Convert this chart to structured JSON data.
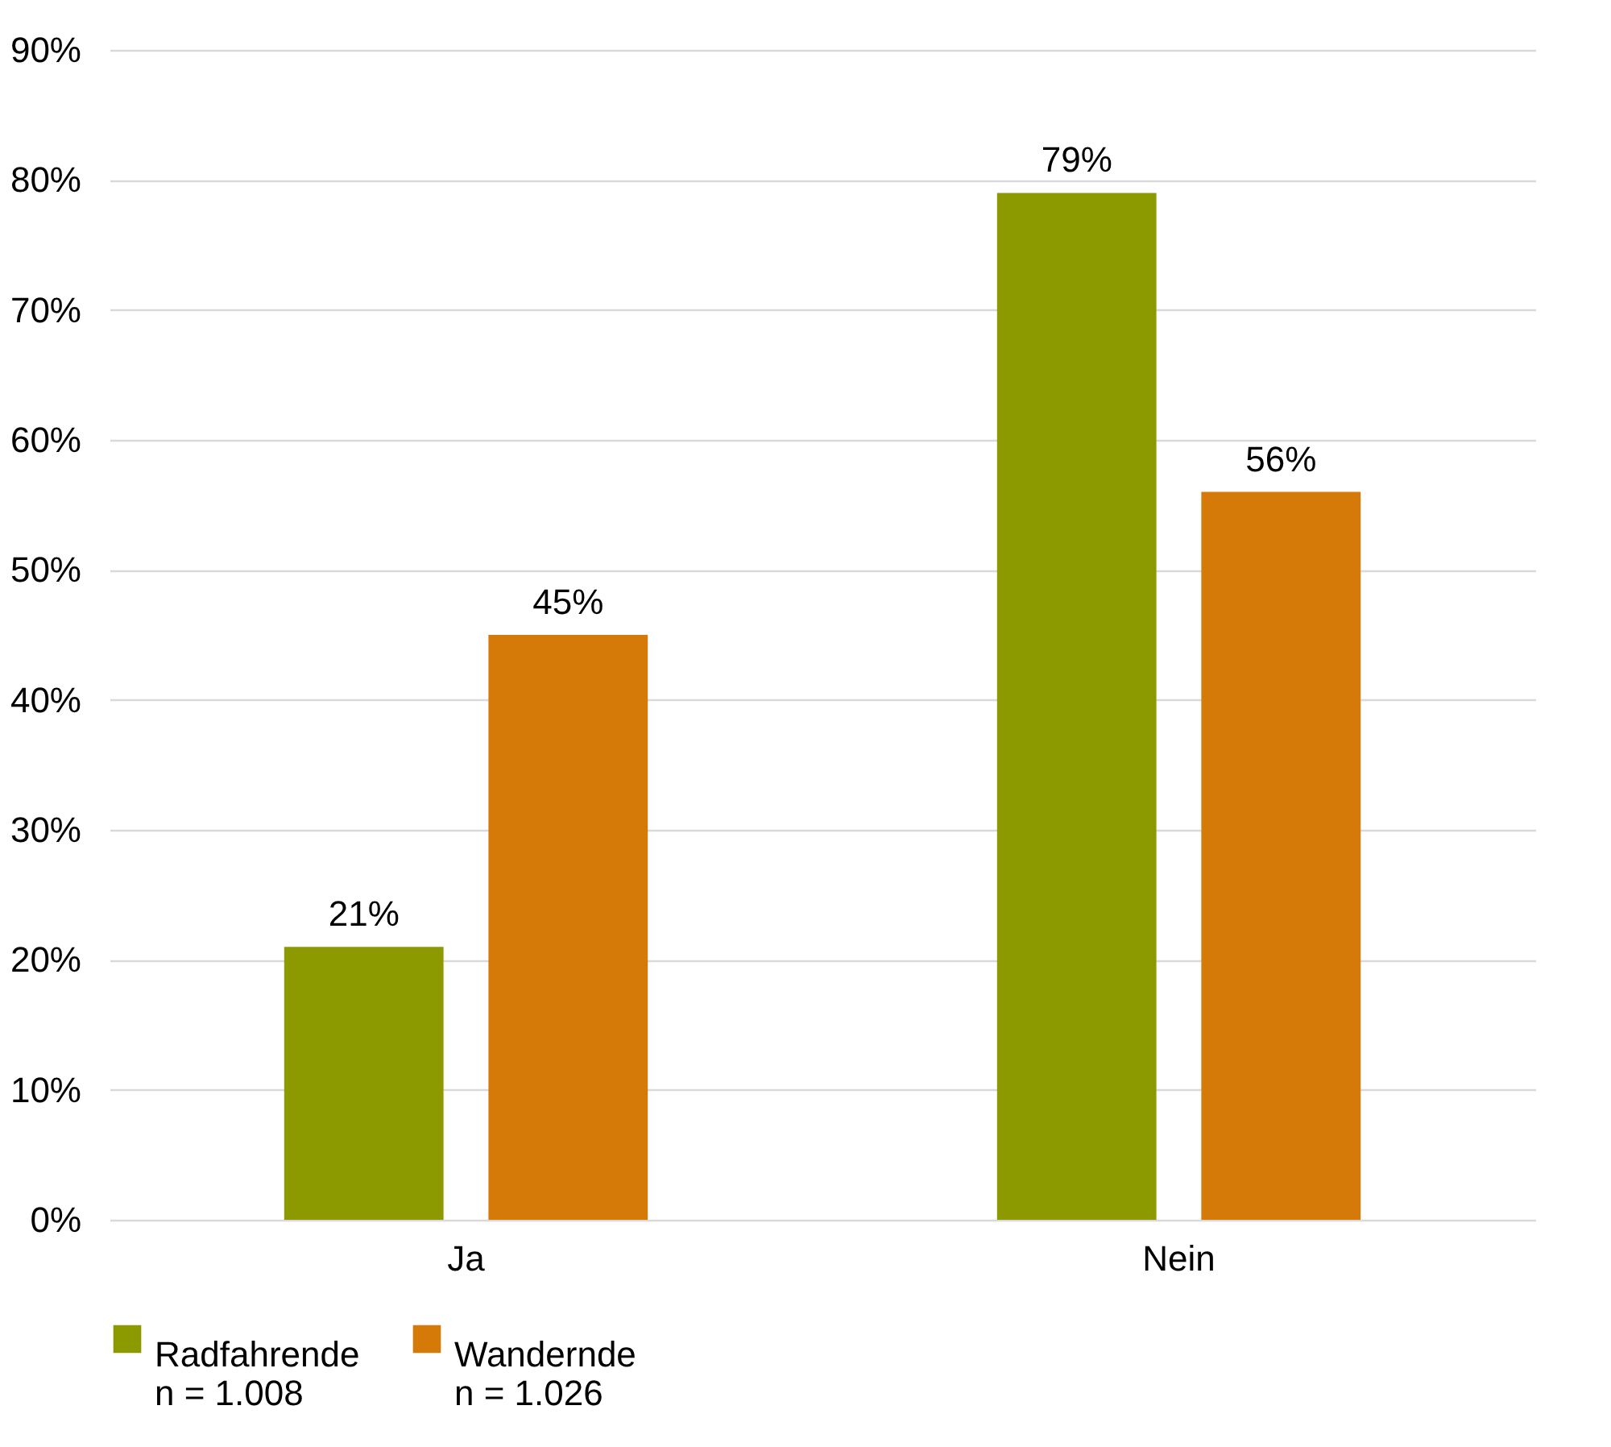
{
  "chart_data": {
    "type": "bar",
    "categories": [
      "Ja",
      "Nein"
    ],
    "series": [
      {
        "name": "Radfahrende\nn = 1.008",
        "color": "#8c9a00",
        "values": [
          21,
          79
        ],
        "value_labels": [
          "21%",
          "79%"
        ]
      },
      {
        "name": "Wandernde\nn = 1.026",
        "color": "#d57908",
        "values": [
          45,
          56
        ],
        "value_labels": [
          "45%",
          "56%"
        ]
      }
    ],
    "ylim": [
      0,
      90
    ],
    "yticks": [
      {
        "value": 0,
        "label": "0%"
      },
      {
        "value": 10,
        "label": "10%"
      },
      {
        "value": 20,
        "label": "20%"
      },
      {
        "value": 30,
        "label": "30%"
      },
      {
        "value": 40,
        "label": "40%"
      },
      {
        "value": 50,
        "label": "50%"
      },
      {
        "value": 60,
        "label": "60%"
      },
      {
        "value": 70,
        "label": "70%"
      },
      {
        "value": 80,
        "label": "80%"
      },
      {
        "value": 90,
        "label": "90%"
      }
    ],
    "grid": "y",
    "legend": "bottom"
  }
}
